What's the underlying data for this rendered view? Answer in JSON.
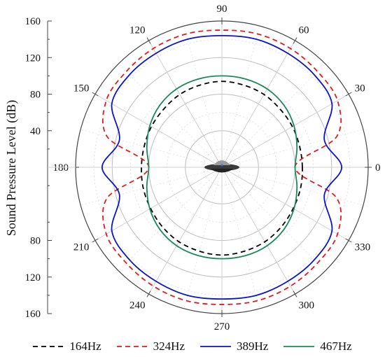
{
  "chart_data": {
    "type": "polar-line",
    "title": "",
    "ylabel": "Sound Pressure Level (dB)",
    "y_ticks_top": [
      "160",
      "120",
      "80",
      "40"
    ],
    "y_ticks_bottom": [
      "80",
      "120",
      "160"
    ],
    "angle_ticks": [
      "0",
      "30",
      "60",
      "90",
      "120",
      "150",
      "180",
      "210",
      "240",
      "270",
      "300",
      "330"
    ],
    "r_range": [
      0,
      160
    ],
    "grid": true,
    "legend_position": "bottom",
    "series": [
      {
        "name": "164Hz",
        "color": "#000000",
        "style": "dashed",
        "angles_deg": [
          0,
          15,
          30,
          45,
          60,
          75,
          90,
          105,
          120,
          135,
          150,
          165,
          180,
          195,
          210,
          225,
          240,
          255,
          270,
          285,
          300,
          315,
          330,
          345
        ],
        "r_db": [
          88,
          88,
          89,
          90,
          92,
          93,
          94,
          93,
          92,
          90,
          89,
          88,
          88,
          89,
          90,
          92,
          94,
          95,
          96,
          95,
          94,
          92,
          90,
          89
        ]
      },
      {
        "name": "324Hz",
        "color": "#e41a1a",
        "style": "dashed",
        "angles_deg": [
          0,
          15,
          30,
          45,
          60,
          75,
          90,
          105,
          120,
          135,
          150,
          165,
          180,
          195,
          210,
          225,
          240,
          255,
          270,
          285,
          300,
          315,
          330,
          345
        ],
        "r_db": [
          80,
          130,
          146,
          148,
          150,
          151,
          150,
          151,
          150,
          148,
          146,
          130,
          80,
          130,
          146,
          148,
          150,
          151,
          150,
          151,
          150,
          148,
          146,
          130
        ]
      },
      {
        "name": "389Hz",
        "color": "#0a14c8",
        "style": "solid",
        "angles_deg": [
          0,
          15,
          30,
          45,
          60,
          75,
          90,
          105,
          120,
          135,
          150,
          165,
          180,
          195,
          210,
          225,
          240,
          255,
          270,
          285,
          300,
          315,
          330,
          345
        ],
        "r_db": [
          131,
          116,
          139,
          143,
          144,
          145,
          144,
          145,
          144,
          143,
          139,
          116,
          131,
          116,
          139,
          143,
          144,
          145,
          144,
          145,
          144,
          143,
          139,
          116
        ]
      },
      {
        "name": "467Hz",
        "color": "#1b8a5a",
        "style": "solid",
        "angles_deg": [
          0,
          15,
          30,
          45,
          60,
          75,
          90,
          105,
          120,
          135,
          150,
          165,
          180,
          195,
          210,
          225,
          240,
          255,
          270,
          285,
          300,
          315,
          330,
          345
        ],
        "r_db": [
          80,
          85,
          91,
          96,
          99,
          100,
          100,
          100,
          99,
          96,
          91,
          85,
          80,
          85,
          91,
          96,
          99,
          100,
          100,
          100,
          99,
          96,
          91,
          85
        ]
      }
    ]
  }
}
